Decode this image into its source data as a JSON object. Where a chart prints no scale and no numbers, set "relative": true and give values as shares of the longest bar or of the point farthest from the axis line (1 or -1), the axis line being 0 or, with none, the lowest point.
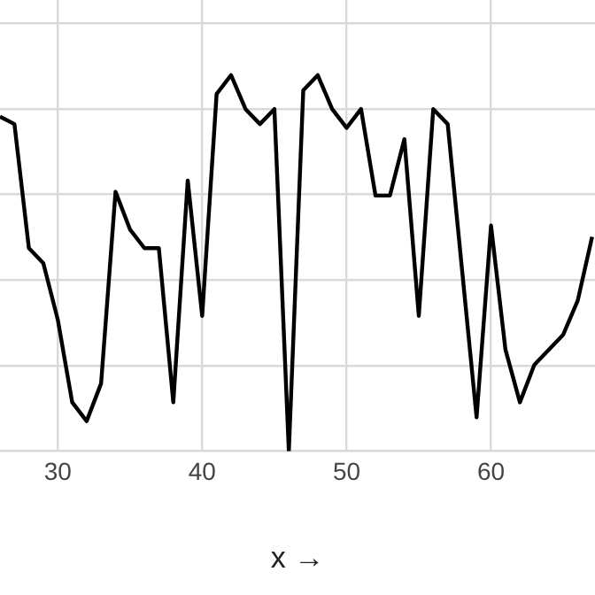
{
  "chart_data": {
    "type": "line",
    "xlabel": "x →",
    "relative": true,
    "grid": true,
    "tick_labels": "x",
    "marker": "none",
    "line_style": "solid",
    "xlim": [
      26,
      67.2
    ],
    "xticks": [
      30,
      40,
      50,
      60
    ],
    "x": [
      26,
      27,
      28,
      29,
      30,
      31,
      32,
      33,
      34,
      35,
      36,
      37,
      38,
      39,
      40,
      41,
      42,
      43,
      44,
      45,
      46,
      47,
      48,
      49,
      50,
      51,
      52,
      53,
      54,
      55,
      56,
      57,
      58,
      59,
      60,
      61,
      62,
      63,
      64,
      65,
      66,
      67
    ],
    "values": [
      0.89,
      0.87,
      0.54,
      0.5,
      0.35,
      0.13,
      0.08,
      0.18,
      0.69,
      0.59,
      0.54,
      0.54,
      0.13,
      0.72,
      0.36,
      0.95,
      1,
      0.91,
      0.87,
      0.91,
      0,
      0.96,
      1,
      0.91,
      0.86,
      0.91,
      0.68,
      0.68,
      0.83,
      0.36,
      0.91,
      0.87,
      0.48,
      0.09,
      0.6,
      0.27,
      0.13,
      0.23,
      0.27,
      0.31,
      0.4,
      0.57
    ],
    "color": "#000000"
  }
}
